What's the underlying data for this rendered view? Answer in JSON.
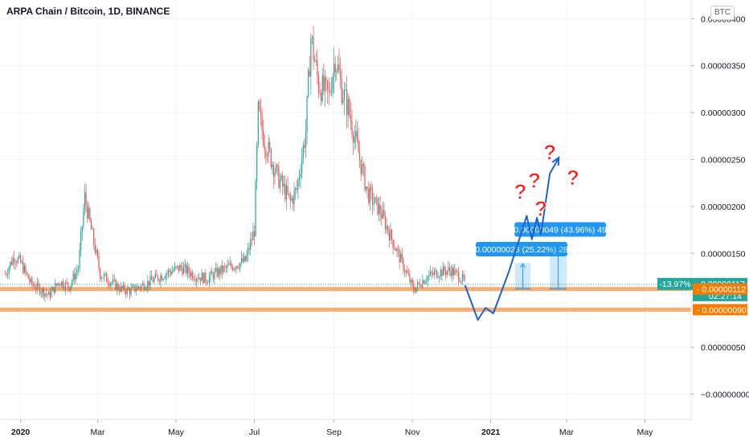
{
  "header": {
    "title": "ARPA Chain / Bitcoin, 1D, BINANCE",
    "currency_button": "BTC"
  },
  "colors": {
    "up": "#26a69a",
    "down": "#ef5350",
    "orange_line": "#f5a05a",
    "arrow_blue": "#1e63c6",
    "label_blue": "#2196f3",
    "price_green": "#26a69a",
    "level_orange": "#f57c00",
    "question_red": "#ff1a1a"
  },
  "chart_data": {
    "type": "candlestick",
    "y_axis_labels": [
      "0.00000400",
      "0.00000350",
      "0.00000300",
      "0.00000250",
      "0.00000200",
      "0.00000150",
      "0.00000050",
      "−0.00000000"
    ],
    "y_ticks": [
      400,
      350,
      300,
      250,
      200,
      150,
      50,
      0
    ],
    "ylim": [
      -27,
      420
    ],
    "x_axis_labels": [
      "2020",
      "Mar",
      "May",
      "Jul",
      "Sep",
      "Nov",
      "2021",
      "Mar",
      "May"
    ],
    "x_tick_days": [
      0,
      60,
      121,
      182,
      244,
      305,
      366,
      425,
      486
    ],
    "xlim": [
      -16,
      522
    ],
    "price_scale_unit": "1e-8 BTC",
    "x_unit": "days since 2020-01-01",
    "candles_anchor": [
      [
        -12,
        128
      ],
      [
        -5,
        147
      ],
      [
        0,
        140
      ],
      [
        8,
        118
      ],
      [
        15,
        112
      ],
      [
        22,
        105
      ],
      [
        30,
        120
      ],
      [
        38,
        115
      ],
      [
        45,
        135
      ],
      [
        50,
        210
      ],
      [
        55,
        175
      ],
      [
        62,
        128
      ],
      [
        70,
        120
      ],
      [
        78,
        112
      ],
      [
        85,
        110
      ],
      [
        95,
        116
      ],
      [
        105,
        123
      ],
      [
        115,
        130
      ],
      [
        125,
        135
      ],
      [
        135,
        127
      ],
      [
        145,
        123
      ],
      [
        155,
        131
      ],
      [
        165,
        137
      ],
      [
        175,
        142
      ],
      [
        182,
        175
      ],
      [
        185,
        300
      ],
      [
        190,
        270
      ],
      [
        200,
        232
      ],
      [
        210,
        205
      ],
      [
        215,
        218
      ],
      [
        222,
        280
      ],
      [
        226,
        380
      ],
      [
        232,
        330
      ],
      [
        240,
        318
      ],
      [
        245,
        360
      ],
      [
        250,
        325
      ],
      [
        255,
        305
      ],
      [
        262,
        263
      ],
      [
        270,
        215
      ],
      [
        280,
        195
      ],
      [
        290,
        162
      ],
      [
        300,
        130
      ],
      [
        306,
        111
      ],
      [
        315,
        124
      ],
      [
        325,
        130
      ],
      [
        335,
        132
      ],
      [
        342,
        125
      ],
      [
        346,
        119
      ]
    ],
    "current_price_label": "0.00000117",
    "current_price": 117,
    "change_label": "-13.97%",
    "countdown": "02:27:14",
    "support_levels": [
      {
        "label": "0.00000112",
        "value": 112
      },
      {
        "label": "0.00000090",
        "value": 90
      }
    ],
    "projection_path": [
      [
        346,
        116
      ],
      [
        356,
        79
      ],
      [
        362,
        92
      ],
      [
        368,
        86
      ],
      [
        380,
        130
      ],
      [
        394,
        190
      ],
      [
        398,
        165
      ],
      [
        402,
        188
      ],
      [
        405,
        170
      ],
      [
        412,
        235
      ],
      [
        419,
        252
      ]
    ],
    "measurements": [
      {
        "label": "0.00000028 (25.22%) 28",
        "x0": 385,
        "x1": 397,
        "y0": 112,
        "y1": 140
      },
      {
        "label": "0.00000049 (43.96%) 49",
        "x0": 412,
        "x1": 425,
        "y0": 112,
        "y1": 161
      }
    ],
    "annotations": [
      {
        "text": "?",
        "x": 412,
        "y": 250
      },
      {
        "text": "?",
        "x": 430,
        "y": 223
      },
      {
        "text": "?",
        "x": 389,
        "y": 208
      },
      {
        "text": "?",
        "x": 400,
        "y": 220
      },
      {
        "text": "?",
        "x": 405,
        "y": 190
      }
    ],
    "partial_axis_label": "0."
  }
}
